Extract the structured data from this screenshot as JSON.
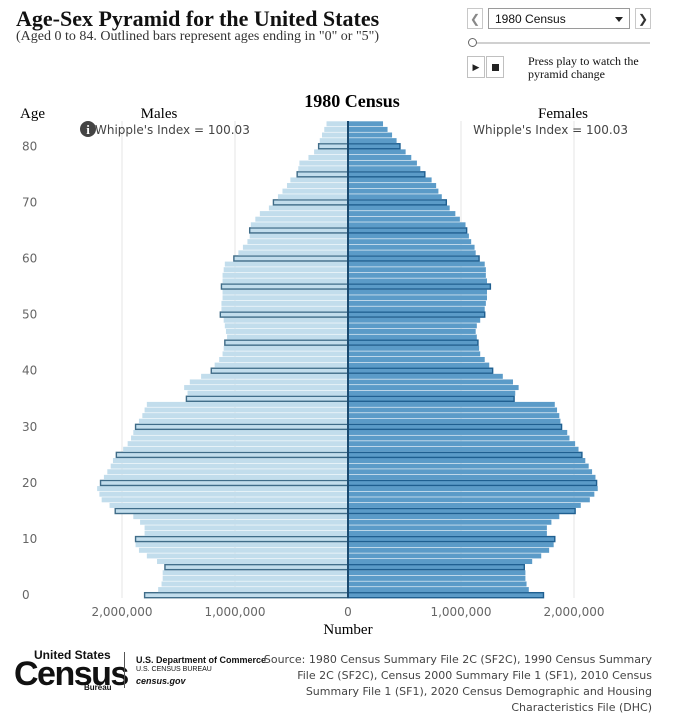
{
  "header": {
    "title": "Age-Sex Pyramid for the United States",
    "subtitle": "(Aged 0 to 84. Outlined bars represent ages ending in \"0\" or \"5\")"
  },
  "controls": {
    "selected_census": "1980 Census",
    "play_help": "Press play to watch the pyramid change",
    "slider_fraction": 0
  },
  "chart_data": {
    "type": "bar",
    "orientation": "horizontal-pyramid",
    "title": "1980 Census",
    "ylabel": "Age",
    "xlabel": "Number",
    "left_label": "Males",
    "right_label": "Females",
    "whipple_male": "Whipple's Index = 100.03",
    "whipple_female": "Whipple's Index = 100.03",
    "xlim": [
      -2300000,
      2300000
    ],
    "x_ticks": [
      "2,000,000",
      "1,000,000",
      "0",
      "1,000,000",
      "2,000,000"
    ],
    "x_tick_values": [
      -2000000,
      -1000000,
      0,
      1000000,
      2000000
    ],
    "y_ticks": [
      "0",
      "10",
      "20",
      "30",
      "40",
      "50",
      "60",
      "70",
      "80"
    ],
    "ages": [
      0,
      1,
      2,
      3,
      4,
      5,
      6,
      7,
      8,
      9,
      10,
      11,
      12,
      13,
      14,
      15,
      16,
      17,
      18,
      19,
      20,
      21,
      22,
      23,
      24,
      25,
      26,
      27,
      28,
      29,
      30,
      31,
      32,
      33,
      34,
      35,
      36,
      37,
      38,
      39,
      40,
      41,
      42,
      43,
      44,
      45,
      46,
      47,
      48,
      49,
      50,
      51,
      52,
      53,
      54,
      55,
      56,
      57,
      58,
      59,
      60,
      61,
      62,
      63,
      64,
      65,
      66,
      67,
      68,
      69,
      70,
      71,
      72,
      73,
      74,
      75,
      76,
      77,
      78,
      79,
      80,
      81,
      82,
      83,
      84
    ],
    "males": [
      1800000,
      1680000,
      1650000,
      1640000,
      1640000,
      1620000,
      1690000,
      1780000,
      1850000,
      1880000,
      1880000,
      1800000,
      1800000,
      1840000,
      1900000,
      2060000,
      2110000,
      2180000,
      2200000,
      2220000,
      2190000,
      2160000,
      2130000,
      2100000,
      2080000,
      2050000,
      1990000,
      1950000,
      1920000,
      1900000,
      1880000,
      1850000,
      1820000,
      1800000,
      1780000,
      1430000,
      1420000,
      1450000,
      1400000,
      1300000,
      1210000,
      1180000,
      1140000,
      1110000,
      1100000,
      1090000,
      1070000,
      1080000,
      1090000,
      1100000,
      1130000,
      1120000,
      1120000,
      1110000,
      1110000,
      1120000,
      1110000,
      1110000,
      1100000,
      1090000,
      1010000,
      970000,
      930000,
      890000,
      870000,
      870000,
      860000,
      820000,
      780000,
      700000,
      660000,
      620000,
      580000,
      540000,
      510000,
      450000,
      440000,
      430000,
      350000,
      300000,
      260000,
      250000,
      230000,
      210000,
      190000
    ],
    "females": [
      1730000,
      1600000,
      1580000,
      1570000,
      1570000,
      1560000,
      1630000,
      1710000,
      1780000,
      1820000,
      1830000,
      1760000,
      1760000,
      1800000,
      1870000,
      2010000,
      2060000,
      2140000,
      2180000,
      2210000,
      2200000,
      2190000,
      2160000,
      2130000,
      2100000,
      2070000,
      2040000,
      2010000,
      1960000,
      1940000,
      1890000,
      1880000,
      1870000,
      1850000,
      1830000,
      1470000,
      1480000,
      1510000,
      1460000,
      1370000,
      1280000,
      1250000,
      1210000,
      1170000,
      1160000,
      1150000,
      1140000,
      1130000,
      1140000,
      1170000,
      1210000,
      1210000,
      1220000,
      1230000,
      1230000,
      1260000,
      1230000,
      1220000,
      1220000,
      1210000,
      1160000,
      1130000,
      1120000,
      1090000,
      1070000,
      1050000,
      1040000,
      990000,
      950000,
      900000,
      870000,
      830000,
      800000,
      780000,
      740000,
      680000,
      640000,
      610000,
      560000,
      510000,
      460000,
      430000,
      390000,
      350000,
      310000
    ]
  },
  "footer": {
    "logo_us": "United States",
    "logo_census": "Census",
    "logo_bureau": "Bureau",
    "dept": "U.S. Department of Commerce",
    "bureau": "U.S. CENSUS BUREAU",
    "url": "census.gov",
    "source": "Source: 1980 Census Summary File 2C (SF2C), 1990 Census Summary File 2C (SF2C), Census 2000 Summary File 1 (SF1), 2010 Census Summary File 1 (SF1), 2020 Census Demographic and Housing Characteristics File (DHC)"
  },
  "colors": {
    "male_fill": "#c2ddec",
    "male_outline": "#3f6c88",
    "female_fill": "#5b9bc8",
    "female_outline": "#1f5f90",
    "center_line": "#1a4a70",
    "grid": "#e6e6e6"
  }
}
